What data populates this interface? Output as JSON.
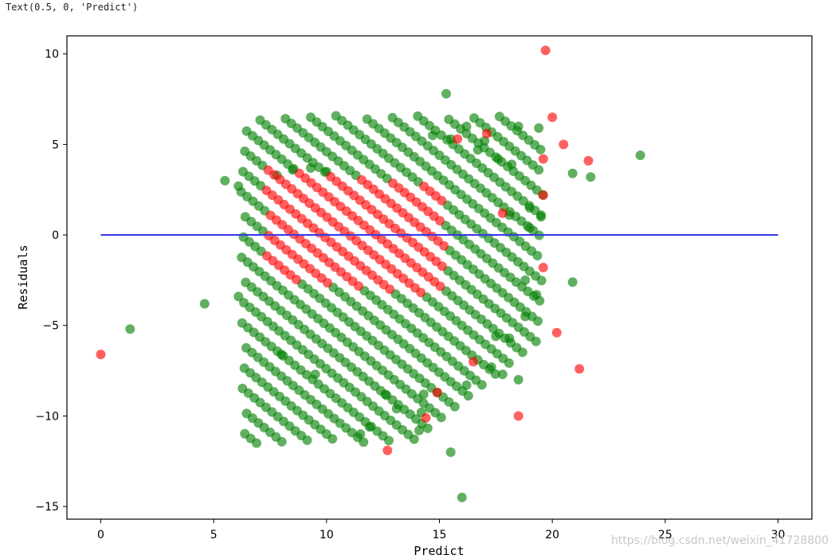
{
  "cell_output": "Text(0.5, 0, 'Predict')",
  "watermark": "https://blog.csdn.net/weixin_41728800",
  "colors": {
    "train": "#008000",
    "test": "#ff0000",
    "hline": "#3a3ae6"
  },
  "chart_data": {
    "type": "scatter",
    "xlabel": "Predict",
    "ylabel": "Residuals",
    "xlim": [
      -1.5,
      31.5
    ],
    "ylim": [
      -15.7,
      11.0
    ],
    "xticks": [
      0,
      5,
      10,
      15,
      20,
      25,
      30
    ],
    "yticks": [
      10,
      5,
      0,
      -5,
      -10,
      -15
    ],
    "hline": {
      "y": 0,
      "xmin": 0,
      "xmax": 30
    },
    "band": {
      "x_offset": 10.2,
      "x_half_width": 7.6,
      "y_min": -11,
      "y_max": 7,
      "band_step": 0.6,
      "point_step": 0.26
    },
    "series": [
      {
        "color": "green",
        "points": [
          [
            1.3,
            -5.2
          ],
          [
            4.6,
            -3.8
          ],
          [
            5.5,
            3.0
          ],
          [
            6.1,
            2.7
          ],
          [
            6.1,
            -3.4
          ],
          [
            7.8,
            3.3
          ],
          [
            8.0,
            -6.6
          ],
          [
            8.5,
            3.6
          ],
          [
            9.3,
            3.7
          ],
          [
            10.0,
            3.5
          ],
          [
            9.5,
            -7.7
          ],
          [
            11.5,
            -11.0
          ],
          [
            11.9,
            -10.6
          ],
          [
            13.1,
            -9.6
          ],
          [
            14.1,
            -10.8
          ],
          [
            14.2,
            -9.8
          ],
          [
            15.3,
            7.8
          ],
          [
            15.5,
            5.3
          ],
          [
            15.5,
            -12.0
          ],
          [
            16.0,
            -14.5
          ],
          [
            16.2,
            -8.3
          ],
          [
            17.3,
            -7.3
          ],
          [
            17.5,
            -5.6
          ],
          [
            17.8,
            -7.7
          ],
          [
            18.1,
            -5.7
          ],
          [
            18.5,
            -8.0
          ],
          [
            18.5,
            6.0
          ],
          [
            18.8,
            -4.5
          ],
          [
            19.3,
            -3.3
          ],
          [
            19.4,
            5.9
          ],
          [
            19.5,
            1.0
          ],
          [
            20.9,
            3.4
          ],
          [
            20.9,
            -2.6
          ],
          [
            21.7,
            3.2
          ],
          [
            23.9,
            4.4
          ],
          [
            12.6,
            -8.8
          ],
          [
            14.3,
            -8.8
          ],
          [
            14.7,
            5.5
          ],
          [
            16.7,
            4.7
          ],
          [
            17.6,
            4.2
          ],
          [
            18.2,
            3.9
          ],
          [
            18.1,
            1.1
          ],
          [
            18.8,
            -2.5
          ],
          [
            19.0,
            0.4
          ],
          [
            19.0,
            1.5
          ],
          [
            16.2,
            6.0
          ],
          [
            17.0,
            5.2
          ]
        ]
      },
      {
        "color": "red",
        "points": [
          [
            0.0,
            -6.6
          ],
          [
            12.7,
            -11.9
          ],
          [
            14.9,
            -8.7
          ],
          [
            16.5,
            -7.0
          ],
          [
            18.5,
            -10.0
          ],
          [
            19.7,
            10.2
          ],
          [
            20.0,
            6.5
          ],
          [
            20.5,
            5.0
          ],
          [
            19.6,
            4.2
          ],
          [
            19.6,
            2.2
          ],
          [
            19.6,
            -1.8
          ],
          [
            20.2,
            -5.4
          ],
          [
            21.2,
            -7.4
          ],
          [
            21.6,
            4.1
          ],
          [
            14.4,
            -10.1
          ],
          [
            17.1,
            5.6
          ],
          [
            15.8,
            5.3
          ],
          [
            17.8,
            1.2
          ]
        ]
      }
    ]
  }
}
